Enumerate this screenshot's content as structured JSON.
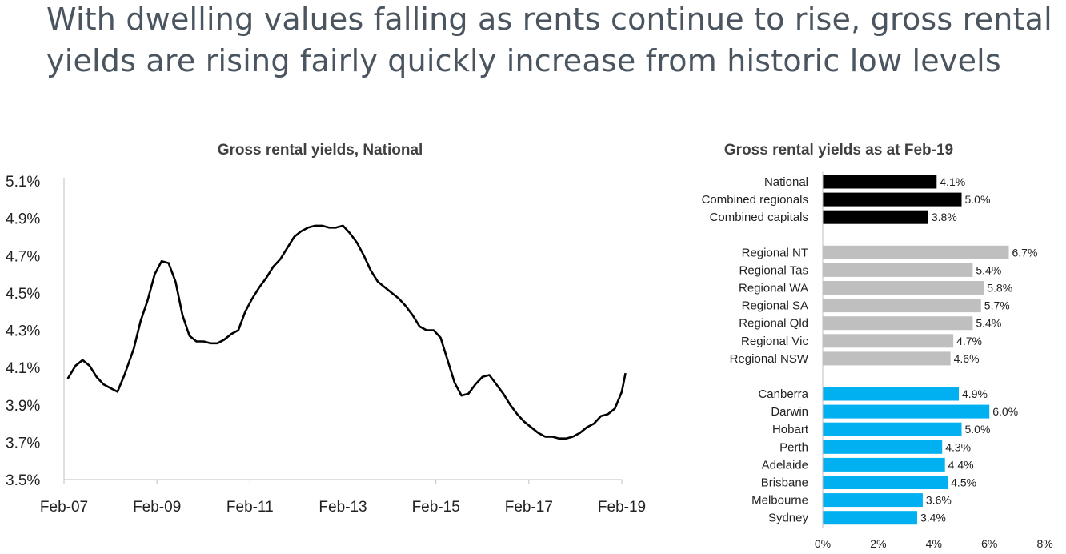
{
  "slide": {
    "title": "With dwelling values falling as rents continue to rise, gross rental yields are rising fairly quickly increase from historic low levels"
  },
  "chart_data": [
    {
      "type": "line",
      "title": "Gross rental yields, National",
      "xlabel": "",
      "ylabel": "",
      "ylim": [
        3.5,
        5.1
      ],
      "y_ticks": [
        "3.5%",
        "3.7%",
        "3.9%",
        "4.1%",
        "4.3%",
        "4.5%",
        "4.7%",
        "4.9%",
        "5.1%"
      ],
      "x_ticks": [
        "Feb-07",
        "Feb-09",
        "Feb-11",
        "Feb-13",
        "Feb-15",
        "Feb-17",
        "Feb-19"
      ],
      "grid": false,
      "line_color": "#000000",
      "series": [
        {
          "x": [
            2007.08,
            2007.25,
            2007.4,
            2007.55,
            2007.7,
            2007.85,
            2008.0,
            2008.15,
            2008.3,
            2008.5,
            2008.65,
            2008.8,
            2008.95,
            2009.1,
            2009.25,
            2009.4,
            2009.55,
            2009.7,
            2009.85,
            2010.0,
            2010.15,
            2010.3,
            2010.45,
            2010.6,
            2010.75,
            2010.9,
            2011.05,
            2011.2,
            2011.35,
            2011.5,
            2011.65,
            2011.8,
            2011.95,
            2012.1,
            2012.25,
            2012.4,
            2012.55,
            2012.7,
            2012.85,
            2013.0,
            2013.15,
            2013.3,
            2013.45,
            2013.6,
            2013.75,
            2013.9,
            2014.05,
            2014.2,
            2014.35,
            2014.5,
            2014.65,
            2014.8,
            2014.95,
            2015.1,
            2015.25,
            2015.4,
            2015.55,
            2015.7,
            2015.85,
            2016.0,
            2016.15,
            2016.3,
            2016.45,
            2016.6,
            2016.75,
            2016.9,
            2017.05,
            2017.2,
            2017.35,
            2017.5,
            2017.65,
            2017.8,
            2017.95,
            2018.1,
            2018.25,
            2018.4,
            2018.55,
            2018.7,
            2018.85,
            2019.0,
            2019.08
          ],
          "values": [
            4.04,
            4.11,
            4.14,
            4.11,
            4.05,
            4.01,
            3.99,
            3.97,
            4.06,
            4.2,
            4.35,
            4.46,
            4.6,
            4.67,
            4.66,
            4.56,
            4.38,
            4.27,
            4.24,
            4.24,
            4.23,
            4.23,
            4.25,
            4.28,
            4.3,
            4.4,
            4.47,
            4.53,
            4.58,
            4.64,
            4.68,
            4.74,
            4.8,
            4.83,
            4.85,
            4.86,
            4.86,
            4.85,
            4.85,
            4.86,
            4.82,
            4.77,
            4.7,
            4.62,
            4.56,
            4.53,
            4.5,
            4.47,
            4.43,
            4.38,
            4.32,
            4.3,
            4.3,
            4.26,
            4.14,
            4.02,
            3.95,
            3.96,
            4.01,
            4.05,
            4.06,
            4.01,
            3.96,
            3.9,
            3.85,
            3.81,
            3.78,
            3.75,
            3.73,
            3.73,
            3.72,
            3.72,
            3.73,
            3.75,
            3.78,
            3.8,
            3.84,
            3.85,
            3.88,
            3.97,
            4.07
          ]
        }
      ]
    },
    {
      "type": "bar",
      "orientation": "horizontal",
      "title": "Gross rental yields as at Feb-19",
      "xlim": [
        0,
        8
      ],
      "x_ticks": [
        "0%",
        "2%",
        "4%",
        "6%",
        "8%"
      ],
      "groups": [
        {
          "color": "#000000",
          "categories": [
            "National",
            "Combined regionals",
            "Combined capitals"
          ],
          "values": [
            4.1,
            5.0,
            3.8
          ],
          "labels": [
            "4.1%",
            "5.0%",
            "3.8%"
          ]
        },
        {
          "color": "#bfbfbf",
          "categories": [
            "Regional NT",
            "Regional Tas",
            "Regional WA",
            "Regional SA",
            "Regional Qld",
            "Regional Vic",
            "Regional NSW"
          ],
          "values": [
            6.7,
            5.4,
            5.8,
            5.7,
            5.4,
            4.7,
            4.6
          ],
          "labels": [
            "6.7%",
            "5.4%",
            "5.8%",
            "5.7%",
            "5.4%",
            "4.7%",
            "4.6%"
          ]
        },
        {
          "color": "#00b0f0",
          "categories": [
            "Canberra",
            "Darwin",
            "Hobart",
            "Perth",
            "Adelaide",
            "Brisbane",
            "Melbourne",
            "Sydney"
          ],
          "values": [
            4.9,
            6.0,
            5.0,
            4.3,
            4.4,
            4.5,
            3.6,
            3.4
          ],
          "labels": [
            "4.9%",
            "6.0%",
            "5.0%",
            "4.3%",
            "4.4%",
            "4.5%",
            "3.6%",
            "3.4%"
          ]
        }
      ]
    }
  ]
}
